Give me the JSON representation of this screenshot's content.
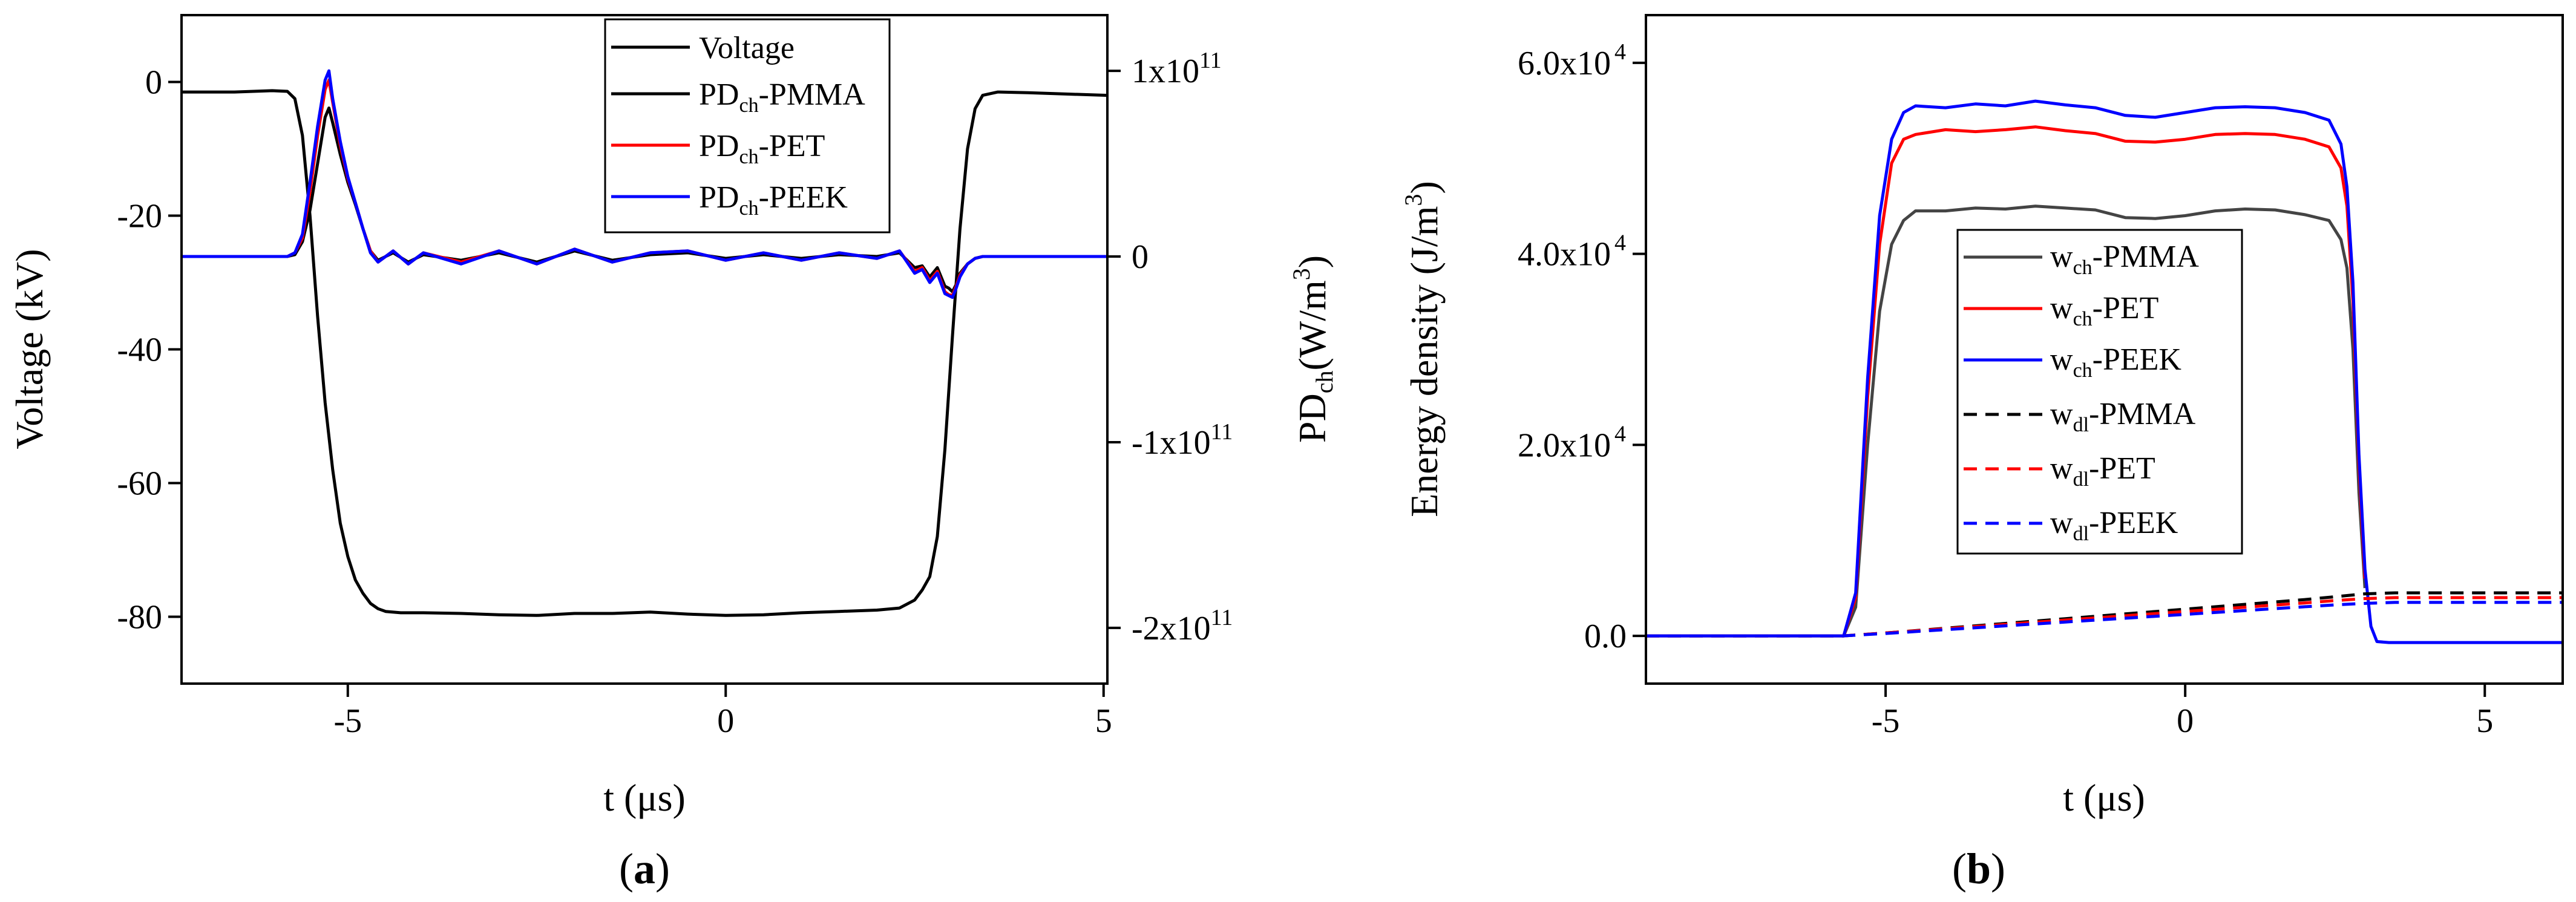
{
  "panels": {
    "a": {
      "label_open": "(",
      "label_letter": "a",
      "label_close": ")"
    },
    "b": {
      "label_open": "(",
      "label_letter": "b",
      "label_close": ")"
    }
  },
  "chart_data": [
    {
      "id": "a",
      "type": "line",
      "xlabel_main": "t (",
      "xlabel_mu": "μs",
      "xlabel_end": ")",
      "xlim": [
        -7.2,
        5.05
      ],
      "xticks": [
        -5,
        0,
        5
      ],
      "xtick_labels": [
        "-5",
        "0",
        "5"
      ],
      "y_left": {
        "label": "Voltage (kV)",
        "lim": [
          -90,
          10
        ],
        "ticks": [
          0,
          -20,
          -40,
          -60,
          -80
        ],
        "tick_labels": [
          "0",
          "-20",
          "-40",
          "-60",
          "-80"
        ]
      },
      "y_right": {
        "label_main": "PD",
        "label_sub": "ch",
        "label_rest": "(W/m",
        "label_sup": "3",
        "label_close": ")",
        "lim": [
          -230000000000.0,
          130000000000.0
        ],
        "ticks": [
          100000000000.0,
          0,
          -100000000000.0,
          -200000000000.0
        ],
        "tick_mant": [
          "1x10",
          "0",
          "-1x10",
          "-2x10"
        ],
        "tick_exp": [
          "11",
          "",
          "11",
          "11"
        ]
      },
      "legend": [
        {
          "main": "Voltage",
          "sub": "",
          "rest": "",
          "color": "#000000"
        },
        {
          "main": "PD",
          "sub": "ch",
          "rest": "-PMMA",
          "color": "#000000"
        },
        {
          "main": "PD",
          "sub": "ch",
          "rest": "-PET",
          "color": "#ff0000"
        },
        {
          "main": "PD",
          "sub": "ch",
          "rest": "-PEEK",
          "color": "#0000ff"
        }
      ],
      "series": [
        {
          "name": "Voltage",
          "axis": "left",
          "color": "#000000",
          "x": [
            -7.2,
            -6.5,
            -6.0,
            -5.8,
            -5.7,
            -5.6,
            -5.5,
            -5.4,
            -5.3,
            -5.2,
            -5.1,
            -5.0,
            -4.9,
            -4.8,
            -4.7,
            -4.6,
            -4.5,
            -4.3,
            -4.0,
            -3.5,
            -3.0,
            -2.5,
            -2.0,
            -1.5,
            -1.0,
            -0.5,
            0.0,
            0.5,
            1.0,
            1.5,
            2.0,
            2.3,
            2.5,
            2.6,
            2.7,
            2.8,
            2.9,
            3.0,
            3.1,
            3.2,
            3.3,
            3.4,
            3.6,
            4.0,
            4.5,
            5.05
          ],
          "y": [
            -1.5,
            -1.5,
            -1.3,
            -1.4,
            -2.5,
            -8,
            -20,
            -35,
            -48,
            -58,
            -66,
            -71,
            -74.5,
            -76.5,
            -78,
            -78.8,
            -79.2,
            -79.4,
            -79.4,
            -79.5,
            -79.7,
            -79.8,
            -79.5,
            -79.5,
            -79.3,
            -79.6,
            -79.8,
            -79.7,
            -79.4,
            -79.2,
            -79,
            -78.7,
            -77.5,
            -76,
            -74,
            -68,
            -55,
            -38,
            -22,
            -10,
            -4,
            -2,
            -1.5,
            -1.6,
            -1.8,
            -2.0
          ]
        },
        {
          "name": "PDch-PMMA",
          "axis": "right",
          "color": "#000000",
          "x": [
            -7.2,
            -5.8,
            -5.7,
            -5.6,
            -5.5,
            -5.4,
            -5.3,
            -5.25,
            -5.2,
            -5.1,
            -5.0,
            -4.9,
            -4.8,
            -4.7,
            -4.6,
            -4.4,
            -4.2,
            -4.0,
            -3.5,
            -3.0,
            -2.5,
            -2.0,
            -1.5,
            -1.0,
            -0.5,
            0.0,
            0.5,
            1.0,
            1.5,
            2.0,
            2.3,
            2.5,
            2.6,
            2.7,
            2.8,
            2.9,
            2.95,
            3.0,
            3.05,
            3.1,
            3.2,
            3.3,
            3.4,
            3.6,
            4.0,
            5.05
          ],
          "y": [
            0,
            0,
            1000000000.0,
            8000000000.0,
            25000000000.0,
            50000000000.0,
            75000000000.0,
            80000000000.0,
            72000000000.0,
            55000000000.0,
            40000000000.0,
            28000000000.0,
            15000000000.0,
            3000000000.0,
            -2000000000.0,
            2000000000.0,
            -3000000000.0,
            1000000000.0,
            -2000000000.0,
            2000000000.0,
            -3000000000.0,
            3000000000.0,
            -2000000000.0,
            1000000000.0,
            2000000000.0,
            -1000000000.0,
            1000000000.0,
            -1000000000.0,
            1000000000.0,
            0.0,
            2000000000.0,
            -6000000000.0,
            -5000000000.0,
            -11000000000.0,
            -6000000000.0,
            -16000000000.0,
            -17000000000.0,
            -19000000000.0,
            -15000000000.0,
            -9000000000.0,
            -4000000000.0,
            -1000000000.0,
            0,
            0,
            0,
            0
          ]
        },
        {
          "name": "PDch-PET",
          "axis": "right",
          "color": "#ff0000",
          "x": [
            -7.2,
            -5.8,
            -5.7,
            -5.6,
            -5.5,
            -5.4,
            -5.3,
            -5.25,
            -5.2,
            -5.1,
            -5.0,
            -4.9,
            -4.8,
            -4.7,
            -4.6,
            -4.4,
            -4.2,
            -4.0,
            -3.5,
            -3.0,
            -2.5,
            -2.0,
            -1.5,
            -1.0,
            -0.5,
            0.0,
            0.5,
            1.0,
            1.5,
            2.0,
            2.3,
            2.5,
            2.6,
            2.7,
            2.8,
            2.9,
            2.95,
            3.0,
            3.05,
            3.1,
            3.2,
            3.3,
            3.4,
            3.6,
            4.0,
            5.05
          ],
          "y": [
            0,
            0,
            2000000000.0,
            10000000000.0,
            35000000000.0,
            65000000000.0,
            90000000000.0,
            95000000000.0,
            83000000000.0,
            60000000000.0,
            42000000000.0,
            29000000000.0,
            15000000000.0,
            3000000000.0,
            -3000000000.0,
            3000000000.0,
            -4000000000.0,
            2000000000.0,
            -3000000000.0,
            3000000000.0,
            -4000000000.0,
            4000000000.0,
            -3000000000.0,
            2000000000.0,
            3000000000.0,
            -2000000000.0,
            2000000000.0,
            -2000000000.0,
            2000000000.0,
            -1000000000.0,
            3000000000.0,
            -8000000000.0,
            -6000000000.0,
            -13000000000.0,
            -8000000000.0,
            -19000000000.0,
            -20500000000.0,
            -21000000000.0,
            -16000000000.0,
            -10000000000.0,
            -4000000000.0,
            -1000000000.0,
            0,
            0,
            0,
            0
          ]
        },
        {
          "name": "PDch-PEEK",
          "axis": "right",
          "color": "#0000ff",
          "x": [
            -7.2,
            -5.8,
            -5.7,
            -5.6,
            -5.5,
            -5.4,
            -5.3,
            -5.25,
            -5.2,
            -5.1,
            -5.0,
            -4.9,
            -4.8,
            -4.7,
            -4.6,
            -4.4,
            -4.2,
            -4.0,
            -3.5,
            -3.0,
            -2.5,
            -2.0,
            -1.5,
            -1.0,
            -0.5,
            0.0,
            0.5,
            1.0,
            1.5,
            2.0,
            2.3,
            2.5,
            2.6,
            2.7,
            2.8,
            2.9,
            2.95,
            3.0,
            3.05,
            3.1,
            3.2,
            3.3,
            3.4,
            3.6,
            4.0,
            5.05
          ],
          "y": [
            0,
            0,
            2000000000.0,
            12000000000.0,
            40000000000.0,
            70000000000.0,
            95000000000.0,
            100000000000.0,
            85000000000.0,
            62000000000.0,
            43000000000.0,
            29000000000.0,
            15000000000.0,
            2000000000.0,
            -3000000000.0,
            3000000000.0,
            -4000000000.0,
            2000000000.0,
            -4000000000.0,
            3000000000.0,
            -4000000000.0,
            4000000000.0,
            -3000000000.0,
            2000000000.0,
            3000000000.0,
            -2000000000.0,
            2000000000.0,
            -2000000000.0,
            2000000000.0,
            -1000000000.0,
            3000000000.0,
            -9000000000.0,
            -7000000000.0,
            -14000000000.0,
            -9000000000.0,
            -20000000000.0,
            -21000000000.0,
            -22000000000.0,
            -17000000000.0,
            -11000000000.0,
            -4000000000.0,
            -1000000000.0,
            0,
            0,
            0,
            0
          ]
        }
      ]
    },
    {
      "id": "b",
      "type": "line",
      "xlabel_main": "t (",
      "xlabel_mu": "μs",
      "xlabel_end": ")",
      "ylabel_main": "Energy density (J/m",
      "ylabel_sup": "3",
      "ylabel_close": ")",
      "xlim": [
        -9.0,
        6.3
      ],
      "xticks": [
        -5,
        0,
        5
      ],
      "xtick_labels": [
        "-5",
        "0",
        "5"
      ],
      "ylim": [
        -5000,
        65000
      ],
      "yticks": [
        0,
        20000,
        40000,
        60000
      ],
      "ytick_mant": [
        "0.0",
        "2.0x10",
        "4.0x10",
        "6.0x10"
      ],
      "ytick_exp": [
        "",
        "4",
        "4",
        "4"
      ],
      "legend": [
        {
          "main": "w",
          "sub": "ch",
          "rest": "-PMMA",
          "color": "#444444",
          "dash": false
        },
        {
          "main": "w",
          "sub": "ch",
          "rest": "-PET",
          "color": "#ff0000",
          "dash": false
        },
        {
          "main": "w",
          "sub": "ch",
          "rest": "-PEEK",
          "color": "#0000ff",
          "dash": false
        },
        {
          "main": "w",
          "sub": "dl",
          "rest": "-PMMA",
          "color": "#000000",
          "dash": true
        },
        {
          "main": "w",
          "sub": "dl",
          "rest": "-PET",
          "color": "#ff0000",
          "dash": true
        },
        {
          "main": "w",
          "sub": "dl",
          "rest": "-PEEK",
          "color": "#0000ff",
          "dash": true
        }
      ],
      "series": [
        {
          "name": "wch-PMMA",
          "color": "#444444",
          "dash": false,
          "x": [
            -9.0,
            -5.7,
            -5.5,
            -5.3,
            -5.1,
            -4.9,
            -4.7,
            -4.5,
            -4.0,
            -3.5,
            -3.0,
            -2.5,
            -2.0,
            -1.5,
            -1.0,
            -0.5,
            0.0,
            0.5,
            1.0,
            1.5,
            2.0,
            2.4,
            2.6,
            2.7,
            2.8,
            2.9,
            3.0
          ],
          "y": [
            0,
            0,
            3000,
            20000,
            34000,
            41000,
            43500,
            44500,
            44500,
            44800,
            44700,
            45000,
            44800,
            44600,
            43800,
            43700,
            44000,
            44500,
            44700,
            44600,
            44100,
            43500,
            41500,
            38500,
            30000,
            15000,
            5000
          ]
        },
        {
          "name": "wch-PET",
          "color": "#ff0000",
          "dash": false,
          "x": [
            -9.0,
            -5.7,
            -5.5,
            -5.3,
            -5.1,
            -4.9,
            -4.7,
            -4.5,
            -4.0,
            -3.5,
            -3.0,
            -2.5,
            -2.0,
            -1.5,
            -1.0,
            -0.5,
            0.0,
            0.5,
            1.0,
            1.5,
            2.0,
            2.4,
            2.6,
            2.7,
            2.8,
            2.9,
            3.0
          ],
          "y": [
            0,
            0,
            4000,
            25000,
            41000,
            49500,
            52000,
            52500,
            53000,
            52800,
            53000,
            53300,
            52900,
            52600,
            51800,
            51700,
            52000,
            52500,
            52600,
            52500,
            52000,
            51200,
            49000,
            45000,
            35000,
            18000,
            6000
          ]
        },
        {
          "name": "wch-PEEK",
          "color": "#0000ff",
          "dash": false,
          "x": [
            -9.0,
            -5.7,
            -5.5,
            -5.3,
            -5.1,
            -4.9,
            -4.7,
            -4.5,
            -4.0,
            -3.5,
            -3.0,
            -2.5,
            -2.0,
            -1.5,
            -1.0,
            -0.5,
            0.0,
            0.5,
            1.0,
            1.5,
            2.0,
            2.4,
            2.6,
            2.7,
            2.8,
            2.9,
            3.0,
            3.1,
            3.2,
            3.4,
            4.0,
            5.0,
            6.3
          ],
          "y": [
            0,
            0,
            4500,
            27000,
            44000,
            52000,
            54800,
            55500,
            55300,
            55700,
            55500,
            56000,
            55600,
            55300,
            54500,
            54300,
            54800,
            55300,
            55400,
            55300,
            54800,
            54000,
            51500,
            47000,
            37000,
            19000,
            7000,
            1000,
            -600,
            -700,
            -700,
            -700,
            -700
          ]
        },
        {
          "name": "wdl-PMMA",
          "color": "#000000",
          "dash": true,
          "x": [
            -9.0,
            -5.7,
            -5.0,
            -4.0,
            -3.0,
            -2.0,
            -1.0,
            0.0,
            1.0,
            2.0,
            2.5,
            3.0,
            3.5,
            4.0,
            5.0,
            6.3
          ],
          "y": [
            0,
            0,
            300,
            800,
            1300,
            1800,
            2300,
            2800,
            3300,
            3800,
            4100,
            4400,
            4500,
            4500,
            4500,
            4500
          ]
        },
        {
          "name": "wdl-PET",
          "color": "#ff0000",
          "dash": true,
          "x": [
            -9.0,
            -5.7,
            -5.0,
            -4.0,
            -3.0,
            -2.0,
            -1.0,
            0.0,
            1.0,
            2.0,
            2.5,
            3.0,
            3.5,
            4.0,
            5.0,
            6.3
          ],
          "y": [
            0,
            0,
            300,
            750,
            1200,
            1650,
            2100,
            2550,
            3000,
            3450,
            3700,
            3900,
            4000,
            4000,
            4000,
            4000
          ]
        },
        {
          "name": "wdl-PEEK",
          "color": "#0000ff",
          "dash": true,
          "x": [
            -9.0,
            -5.7,
            -5.0,
            -4.0,
            -3.0,
            -2.0,
            -1.0,
            0.0,
            1.0,
            2.0,
            2.5,
            3.0,
            3.5,
            4.0,
            5.0,
            6.3
          ],
          "y": [
            0,
            0,
            250,
            650,
            1050,
            1450,
            1850,
            2250,
            2650,
            3050,
            3250,
            3400,
            3500,
            3500,
            3500,
            3500
          ]
        }
      ]
    }
  ]
}
